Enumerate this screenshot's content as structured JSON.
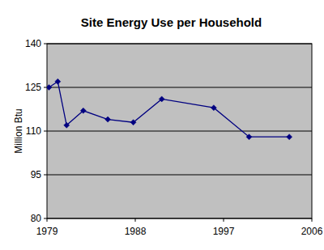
{
  "chart_data": {
    "type": "line",
    "title": "Site Energy Use per Household",
    "y_label": "Million Btu",
    "x": [
      1979.2,
      1980.1,
      1981,
      1982.7,
      1985.2,
      1987.8,
      1990.7,
      1996,
      1999.6,
      2003.7
    ],
    "values": [
      125,
      127,
      112,
      117,
      114,
      113,
      121,
      118,
      108,
      108
    ],
    "color": "#000080",
    "marker": "diamond",
    "line_style": "solid",
    "xlim": [
      1979,
      2006
    ],
    "xticks": [
      1979,
      1988,
      1997,
      2006
    ],
    "ylim": [
      80,
      140
    ],
    "yticks": [
      80,
      95,
      110,
      125,
      140
    ],
    "grid": true
  }
}
